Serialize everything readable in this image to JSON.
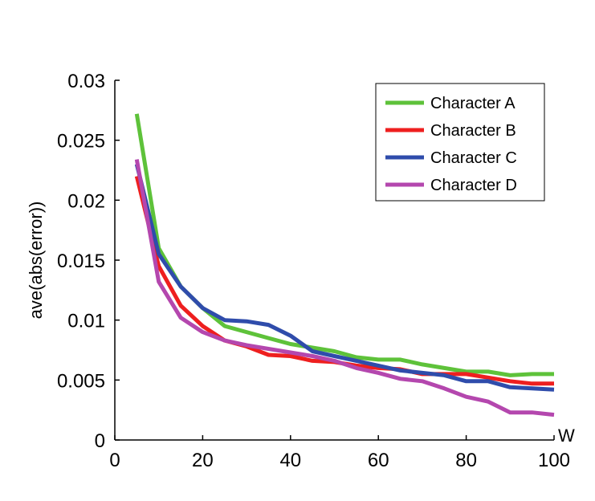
{
  "chart_data": {
    "type": "line",
    "ylabel": "ave(abs(error))",
    "xlabel": "W",
    "xlim": [
      0,
      100
    ],
    "ylim": [
      0,
      0.03
    ],
    "xticks": [
      "0",
      "20",
      "40",
      "60",
      "80",
      "100"
    ],
    "yticks": [
      "0",
      "0.005",
      "0.01",
      "0.015",
      "0.02",
      "0.025",
      "0.03"
    ],
    "x": [
      5,
      10,
      15,
      20,
      25,
      30,
      35,
      40,
      45,
      50,
      55,
      60,
      65,
      70,
      75,
      80,
      85,
      90,
      95,
      100
    ],
    "legend_position": "top-right",
    "series": [
      {
        "name": "Character A",
        "color": "#5ec23a",
        "values": [
          0.0272,
          0.016,
          0.0128,
          0.011,
          0.0095,
          0.009,
          0.0085,
          0.008,
          0.0077,
          0.0074,
          0.0069,
          0.0067,
          0.0067,
          0.0063,
          0.006,
          0.0057,
          0.0057,
          0.0054,
          0.0055,
          0.0055
        ]
      },
      {
        "name": "Character B",
        "color": "#ee1f1f",
        "values": [
          0.022,
          0.0145,
          0.0112,
          0.0095,
          0.0083,
          0.0078,
          0.0071,
          0.007,
          0.0066,
          0.0065,
          0.0062,
          0.006,
          0.0059,
          0.0055,
          0.0055,
          0.0055,
          0.0052,
          0.0049,
          0.0047,
          0.0047
        ]
      },
      {
        "name": "Character C",
        "color": "#2f4cab",
        "values": [
          0.023,
          0.0155,
          0.0128,
          0.011,
          0.01,
          0.0099,
          0.0096,
          0.0087,
          0.0074,
          0.007,
          0.0066,
          0.0062,
          0.0058,
          0.0056,
          0.0054,
          0.0049,
          0.0049,
          0.0044,
          0.0043,
          0.0042
        ]
      },
      {
        "name": "Character D",
        "color": "#b447ae",
        "values": [
          0.0234,
          0.0132,
          0.0102,
          0.009,
          0.0083,
          0.0079,
          0.0076,
          0.0073,
          0.007,
          0.0066,
          0.006,
          0.0056,
          0.0051,
          0.0049,
          0.0043,
          0.0036,
          0.0032,
          0.0023,
          0.0023,
          0.0021
        ]
      }
    ]
  }
}
